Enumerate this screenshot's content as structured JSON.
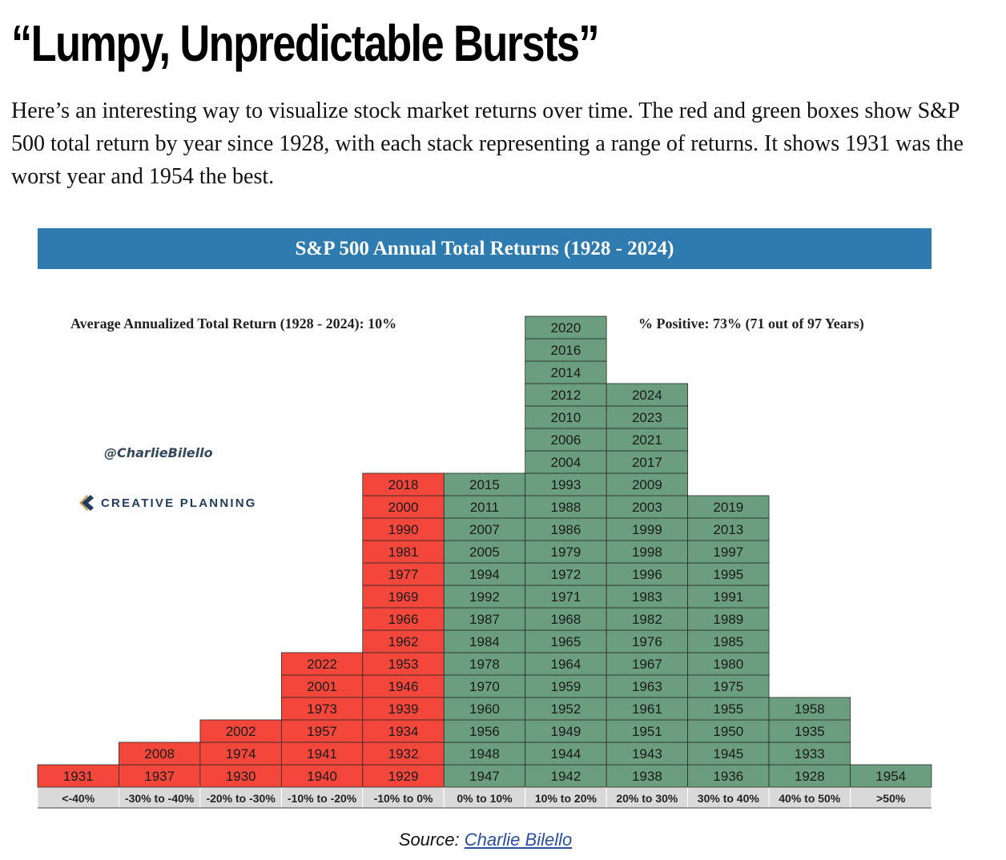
{
  "article": {
    "headline": "“Lumpy, Unpredictable Bursts”",
    "intro": "Here’s an interesting way to visualize stock market returns over time. The red and green boxes show S&P 500 total return by year since 1928, with each stack representing a range of returns. It shows 1931 was the worst year and 1954 the best.",
    "source_label": "Source:",
    "source_link": "Charlie Bilello"
  },
  "branding": {
    "handle": "@CharlieBilello",
    "logo_text": "CREATIVE PLANNING",
    "logo_icon": "creative-planning-c-icon"
  },
  "colors": {
    "negative": "#f4473c",
    "positive": "#6b9e7e",
    "banner": "#2e7bb0",
    "label_bg": "#d9d9d9"
  },
  "chart_data": {
    "type": "table",
    "title": "S&P 500 Annual Total Returns (1928 - 2024)",
    "annotations": [
      "Average Annualized Total Return (1928 - 2024): 10%",
      "% Positive: 73% (71 out of 97 Years)"
    ],
    "categories": [
      "<-40%",
      "-30% to -40%",
      "-20% to -30%",
      "-10% to -20%",
      "-10% to 0%",
      "0% to 10%",
      "10% to 20%",
      "20% to 30%",
      "30% to 40%",
      "40% to 50%",
      ">50%"
    ],
    "bins": [
      {
        "label": "<-40%",
        "sign": "negative",
        "years": [
          1931
        ]
      },
      {
        "label": "-30% to -40%",
        "sign": "negative",
        "years": [
          1937,
          2008
        ]
      },
      {
        "label": "-20% to -30%",
        "sign": "negative",
        "years": [
          1930,
          1974,
          2002
        ]
      },
      {
        "label": "-10% to -20%",
        "sign": "negative",
        "years": [
          1940,
          1941,
          1957,
          1973,
          2001,
          2022
        ]
      },
      {
        "label": "-10% to 0%",
        "sign": "negative",
        "years": [
          1929,
          1932,
          1934,
          1939,
          1946,
          1953,
          1962,
          1966,
          1969,
          1977,
          1981,
          1990,
          2000,
          2018
        ]
      },
      {
        "label": "0% to 10%",
        "sign": "positive",
        "years": [
          1947,
          1948,
          1956,
          1960,
          1970,
          1978,
          1984,
          1987,
          1992,
          1994,
          2005,
          2007,
          2011,
          2015
        ]
      },
      {
        "label": "10% to 20%",
        "sign": "positive",
        "years": [
          1942,
          1944,
          1949,
          1952,
          1959,
          1964,
          1965,
          1968,
          1971,
          1972,
          1979,
          1986,
          1988,
          1993,
          2004,
          2006,
          2010,
          2012,
          2014,
          2016,
          2020
        ]
      },
      {
        "label": "20% to 30%",
        "sign": "positive",
        "years": [
          1938,
          1943,
          1951,
          1961,
          1963,
          1967,
          1976,
          1982,
          1983,
          1996,
          1998,
          1999,
          2003,
          2009,
          2017,
          2021,
          2023,
          2024
        ]
      },
      {
        "label": "30% to 40%",
        "sign": "positive",
        "years": [
          1936,
          1945,
          1950,
          1955,
          1975,
          1980,
          1985,
          1989,
          1991,
          1995,
          1997,
          2013,
          2019
        ]
      },
      {
        "label": "40% to 50%",
        "sign": "positive",
        "years": [
          1928,
          1933,
          1935,
          1958
        ]
      },
      {
        "label": ">50%",
        "sign": "positive",
        "years": [
          1954
        ]
      }
    ]
  }
}
